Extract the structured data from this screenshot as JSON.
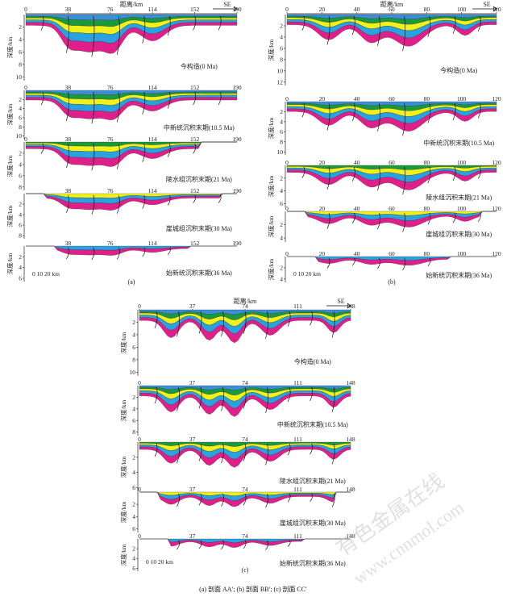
{
  "axis_title": "距离/km",
  "depth_label": "深度/km",
  "direction": "SE",
  "scale_bar": "0  10 20 km",
  "caption": "(a)  剖面 AA′; (b)  剖面 BB′; (c)  剖面 CC′",
  "watermark": [
    "有色金属在线",
    "www.cnnmol.com"
  ],
  "colors": {
    "water": "#3b8fd6",
    "green": "#1a9a3a",
    "yellow": "#f2f21a",
    "blue": "#2aa1e0",
    "magenta": "#e0208a",
    "fault": "#111111"
  },
  "panels": [
    {
      "id": "a",
      "label": "(a)",
      "x_ticks": [
        "0",
        "38",
        "76",
        "114",
        "152",
        "190"
      ],
      "rows": [
        {
          "stage": "今构造(0 Ma)",
          "depth_ticks": [
            "2",
            "4",
            "6",
            "8",
            "10"
          ],
          "ticks": [
            "0",
            "38",
            "76",
            "114",
            "152",
            "190"
          ]
        },
        {
          "stage": "中新统沉积末期(10.5 Ma)",
          "depth_ticks": [
            "2",
            "4",
            "6",
            "8",
            "10"
          ],
          "ticks": [
            "0",
            "38",
            "76",
            "114",
            "152",
            "190"
          ]
        },
        {
          "stage": "陵水组沉积末期(21 Ma)",
          "depth_ticks": [
            "2",
            "4",
            "6",
            "8"
          ],
          "ticks": [
            "0",
            "38",
            "76",
            "114",
            "152",
            "190"
          ]
        },
        {
          "stage": "崖城组沉积末期(30 Ma)",
          "depth_ticks": [
            "2",
            "4",
            "6",
            "8"
          ],
          "ticks": [
            "38",
            "76",
            "114",
            "152",
            "190"
          ]
        },
        {
          "stage": "始新统沉积末期(36 Ma)",
          "depth_ticks": [
            "2",
            "4",
            "6"
          ],
          "ticks": [
            "38",
            "76",
            "114",
            "152",
            "190"
          ]
        }
      ]
    },
    {
      "id": "b",
      "label": "(b)",
      "x_ticks": [
        "0",
        "20",
        "40",
        "60",
        "80",
        "100",
        "120"
      ],
      "rows": [
        {
          "stage": "今构造(0 Ma)",
          "depth_ticks": [
            "2",
            "4",
            "6",
            "8",
            "10",
            "12"
          ],
          "ticks": [
            "0",
            "20",
            "40",
            "60",
            "80",
            "100",
            "120"
          ]
        },
        {
          "stage": "中新统沉积末期(10.5 Ma)",
          "depth_ticks": [
            "2",
            "4",
            "6",
            "8",
            "10"
          ],
          "ticks": [
            "0",
            "20",
            "40",
            "60",
            "80",
            "100",
            "120"
          ]
        },
        {
          "stage": "陵水组沉积末期(21 Ma)",
          "depth_ticks": [
            "2",
            "4",
            "6"
          ],
          "ticks": [
            "0",
            "20",
            "40",
            "60",
            "80",
            "100",
            "120"
          ]
        },
        {
          "stage": "崖城组沉积末期(30 Ma)",
          "depth_ticks": [
            "2",
            "4"
          ],
          "ticks": [
            "0",
            "20",
            "40",
            "60",
            "80",
            "100",
            "120"
          ]
        },
        {
          "stage": "始新统沉积末期(36 Ma)",
          "depth_ticks": [
            "2",
            "4"
          ],
          "ticks": [
            "0",
            "20",
            "40",
            "60",
            "80",
            "100",
            "120"
          ]
        }
      ]
    },
    {
      "id": "c",
      "label": "(c)",
      "x_ticks": [
        "0",
        "37",
        "74",
        "111",
        "148"
      ],
      "rows": [
        {
          "stage": "今构造(0 Ma)",
          "depth_ticks": [
            "2",
            "4",
            "6",
            "8",
            "10"
          ],
          "ticks": [
            "0",
            "37",
            "74",
            "111",
            "148"
          ]
        },
        {
          "stage": "中新统沉积末期(10.5 Ma)",
          "depth_ticks": [
            "2",
            "4",
            "6",
            "8"
          ],
          "ticks": [
            "0",
            "37",
            "74",
            "111",
            "148"
          ]
        },
        {
          "stage": "陵水组沉积末期(21 Ma)",
          "depth_ticks": [
            "2",
            "4",
            "6"
          ],
          "ticks": [
            "0",
            "37",
            "74",
            "111",
            "148"
          ]
        },
        {
          "stage": "崖城组沉积末期(30 Ma)",
          "depth_ticks": [
            "2",
            "4",
            "6"
          ],
          "ticks": [
            "0",
            "37",
            "74",
            "111",
            "148"
          ]
        },
        {
          "stage": "始新统沉积末期(36 Ma)",
          "depth_ticks": [
            "2",
            "4",
            "6"
          ],
          "ticks": [
            "0",
            "37",
            "74",
            "111",
            "148"
          ]
        }
      ]
    }
  ]
}
